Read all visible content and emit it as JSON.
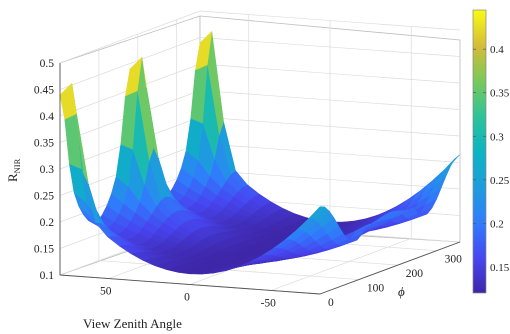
{
  "chart_data": {
    "type": "surface",
    "title": "",
    "xlabel": "View Zenith Angle",
    "ylabel": "ϕ",
    "zlabel": "R",
    "zlabel_sub": "NIR",
    "xlim": [
      -80,
      80
    ],
    "ylim": [
      0,
      360
    ],
    "zlim": [
      0.1,
      0.5
    ],
    "x_ticks": [
      "50",
      "0",
      "-50"
    ],
    "y_ticks": [
      "0",
      "100",
      "200",
      "300"
    ],
    "z_ticks": [
      "0.1",
      "0.15",
      "0.2",
      "0.25",
      "0.3",
      "0.35",
      "0.4",
      "0.45",
      "0.5"
    ],
    "colormap": "parula",
    "colorbar": {
      "range": [
        0.12,
        0.445
      ],
      "ticks": [
        "0.15",
        "0.2",
        "0.25",
        "0.3",
        "0.35",
        "0.4"
      ]
    },
    "grid": true,
    "hotspots": [
      {
        "view_zenith": 75,
        "phi": 0,
        "value": 0.47
      },
      {
        "view_zenith": 75,
        "phi": 180,
        "value": 0.47
      },
      {
        "view_zenith": 75,
        "phi": 360,
        "value": 0.47
      }
    ],
    "min_value": 0.12
  }
}
